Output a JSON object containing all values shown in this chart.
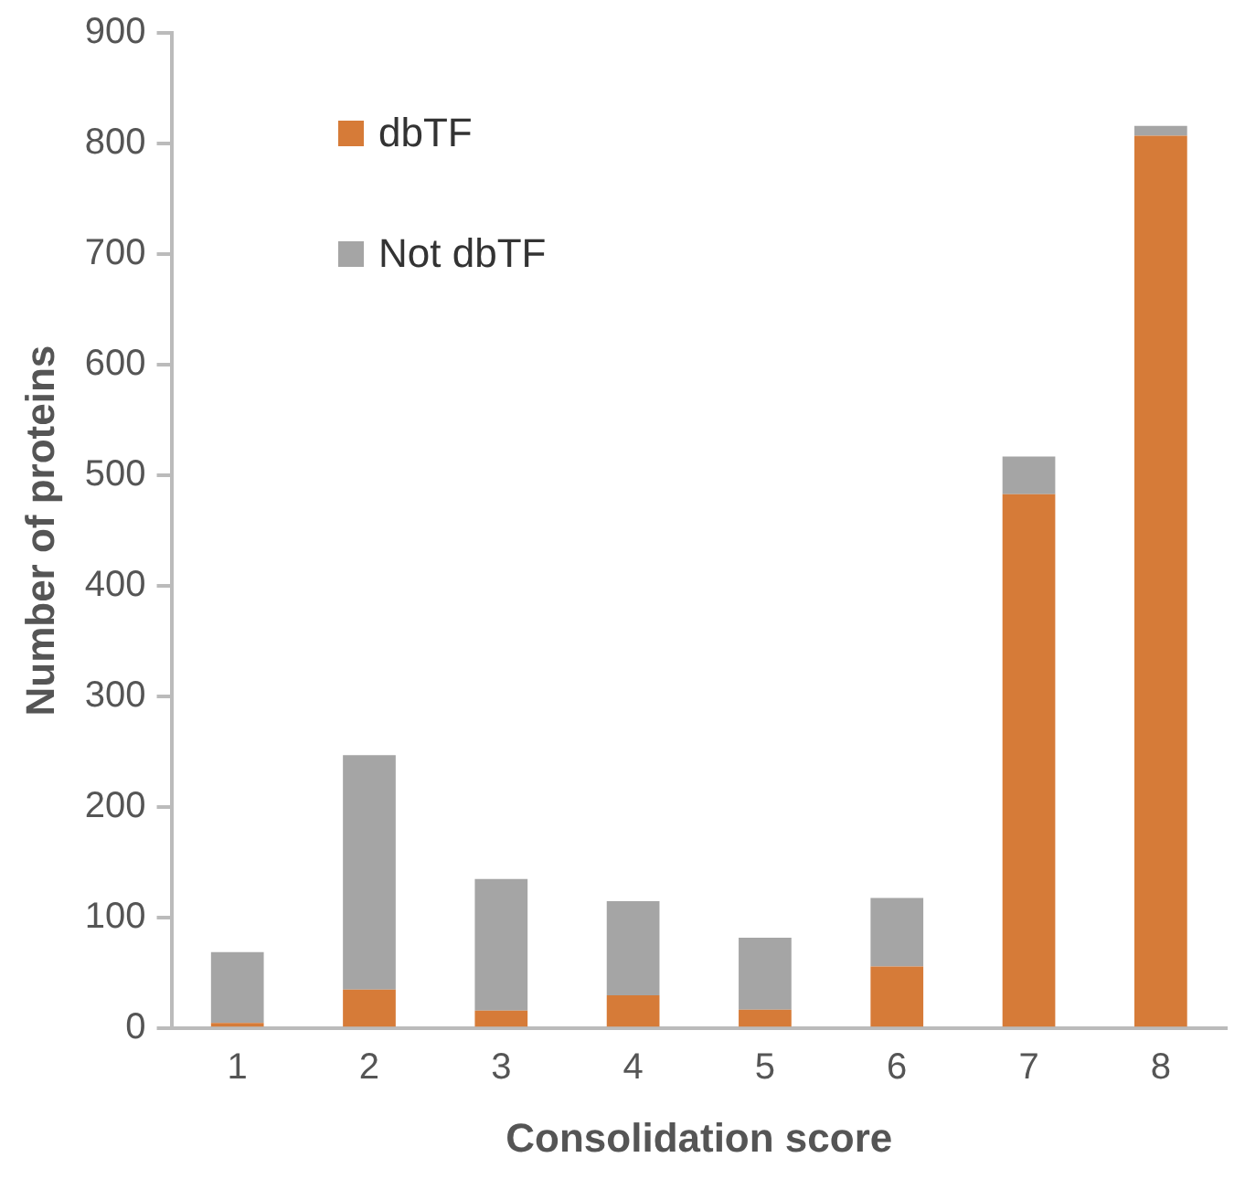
{
  "chart_data": {
    "type": "bar",
    "stacked": true,
    "xlabel": "Consolidation score",
    "ylabel": "Number of proteins",
    "categories": [
      "1",
      "2",
      "3",
      "4",
      "5",
      "6",
      "7",
      "8"
    ],
    "series": [
      {
        "name": "dbTF",
        "color": "#d67b38",
        "values": [
          5,
          35,
          16,
          30,
          17,
          56,
          483,
          807
        ]
      },
      {
        "name": "Not dbTF",
        "color": "#a5a5a5",
        "values": [
          64,
          212,
          119,
          85,
          65,
          62,
          34,
          9
        ]
      }
    ],
    "ylim": [
      0,
      900
    ],
    "yticks": [
      0,
      100,
      200,
      300,
      400,
      500,
      600,
      700,
      800,
      900
    ],
    "grid": false,
    "legend": "top left"
  }
}
